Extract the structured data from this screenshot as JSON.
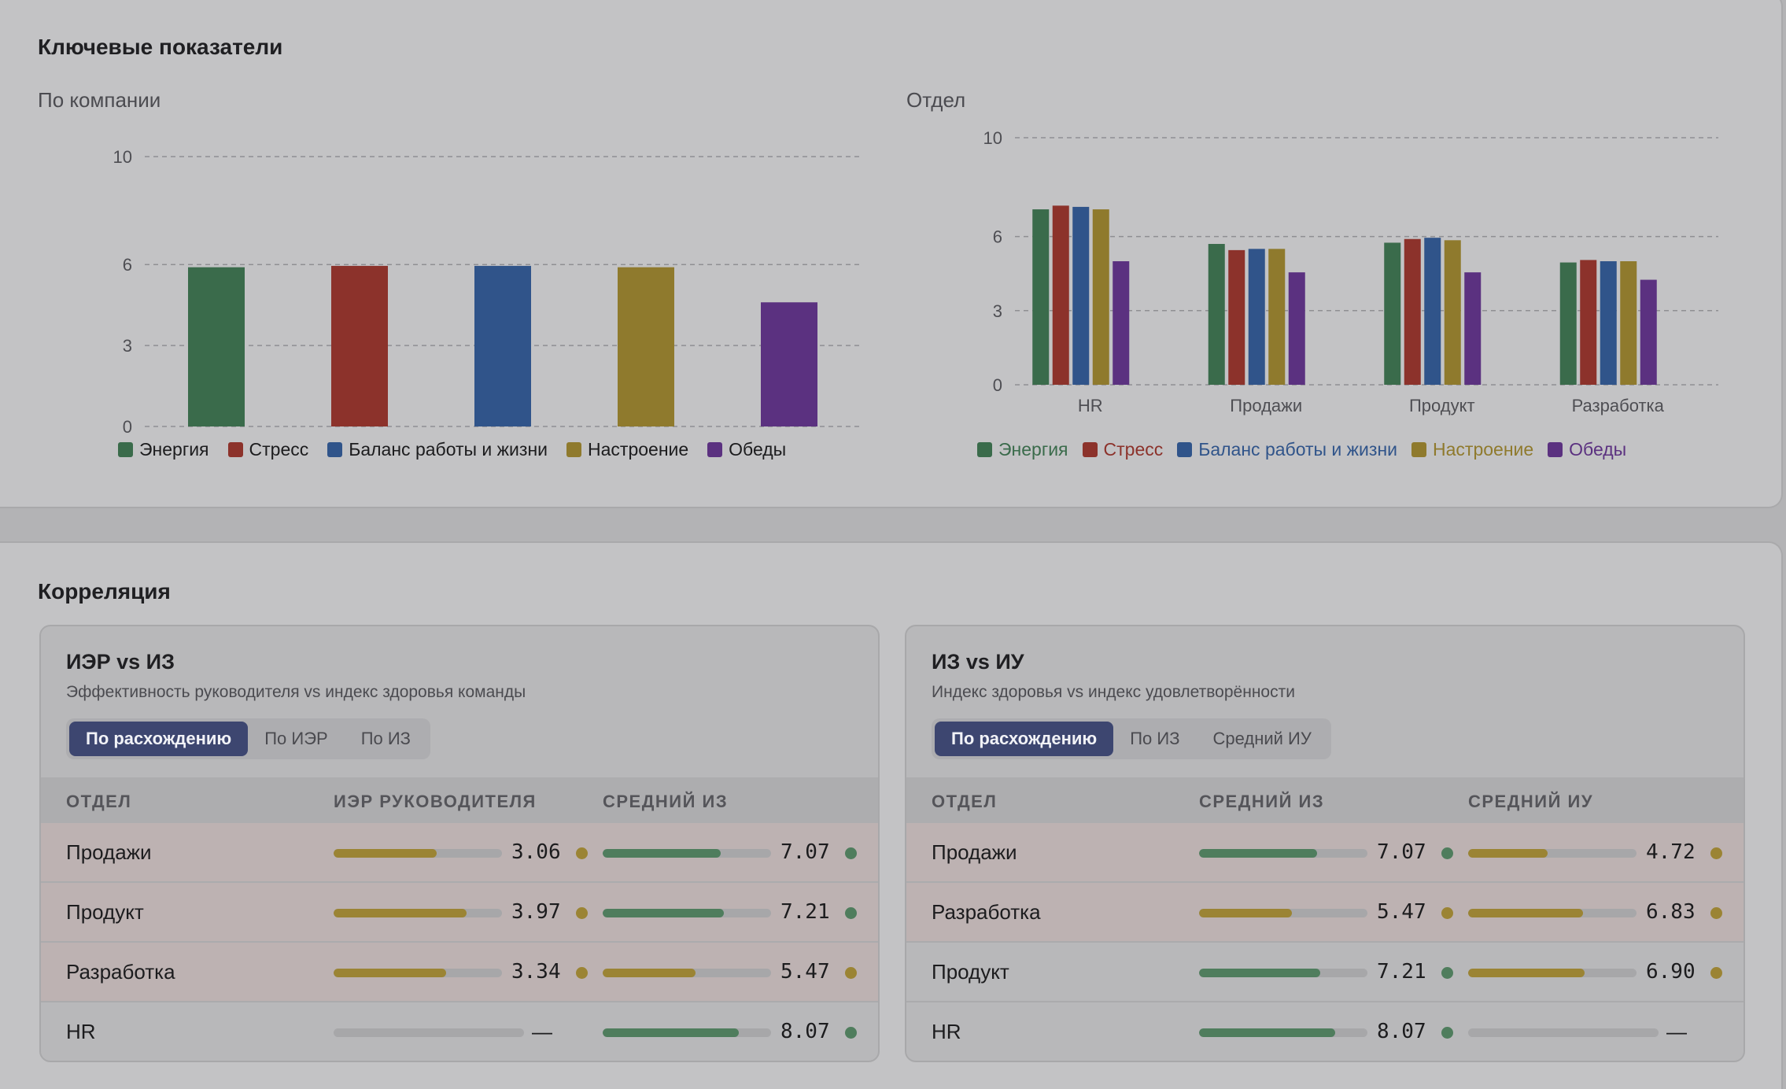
{
  "colors": {
    "energy": "#3a6b4b",
    "stress": "#8c322b",
    "balance": "#30548a",
    "mood": "#8f7a2d",
    "lunch": "#5b3180",
    "good": "#4f7d5d",
    "warn": "#9b8434"
  },
  "kpi": {
    "title": "Ключевые показатели",
    "company_title": "По компании",
    "dept_title": "Отдел"
  },
  "chart_data": [
    {
      "type": "bar",
      "categories": [
        "Энергия",
        "Стресс",
        "Баланс работы и жизни",
        "Настроение",
        "Обеды"
      ],
      "values": [
        5.9,
        5.95,
        5.95,
        5.9,
        4.6
      ],
      "yticks": [
        0,
        3,
        6,
        10
      ],
      "ylim": [
        0,
        10
      ],
      "grid": true,
      "legend": [
        "Энергия",
        "Стресс",
        "Баланс работы и жизни",
        "Настроение",
        "Обеды"
      ],
      "legend_position": "bottom"
    },
    {
      "type": "bar",
      "categories": [
        "HR",
        "Продажи",
        "Продукт",
        "Разработка"
      ],
      "series": [
        {
          "name": "Энергия",
          "values": [
            7.1,
            5.7,
            5.75,
            4.95
          ]
        },
        {
          "name": "Стресс",
          "values": [
            7.25,
            5.45,
            5.9,
            5.05
          ]
        },
        {
          "name": "Баланс работы и жизни",
          "values": [
            7.2,
            5.5,
            5.95,
            5.0
          ]
        },
        {
          "name": "Настроение",
          "values": [
            7.1,
            5.5,
            5.85,
            5.0
          ]
        },
        {
          "name": "Обеды",
          "values": [
            5.0,
            4.55,
            4.55,
            4.25
          ]
        }
      ],
      "yticks": [
        0,
        3,
        6,
        10
      ],
      "ylim": [
        0,
        10
      ],
      "grid": true,
      "legend_position": "bottom"
    }
  ],
  "correlation": {
    "title": "Корреляция",
    "panels": [
      {
        "title": "ИЭР vs ИЗ",
        "subtitle": "Эффективность руководителя vs индекс здоровья команды",
        "tabs": [
          "По расхождению",
          "По ИЭР",
          "По ИЗ"
        ],
        "active_tab": 0,
        "columns": [
          "ОТДЕЛ",
          "ИЭР РУКОВОДИТЕЛЯ",
          "СРЕДНИЙ ИЗ"
        ],
        "rows": [
          {
            "dept": "Продажи",
            "highlight": true,
            "a": {
              "value": "3.06",
              "fraction": 0.61,
              "status": "warn"
            },
            "b": {
              "value": "7.07",
              "fraction": 0.7,
              "status": "good"
            }
          },
          {
            "dept": "Продукт",
            "highlight": true,
            "a": {
              "value": "3.97",
              "fraction": 0.79,
              "status": "warn"
            },
            "b": {
              "value": "7.21",
              "fraction": 0.72,
              "status": "good"
            }
          },
          {
            "dept": "Разработка",
            "highlight": true,
            "a": {
              "value": "3.34",
              "fraction": 0.67,
              "status": "warn"
            },
            "b": {
              "value": "5.47",
              "fraction": 0.55,
              "status": "warn"
            }
          },
          {
            "dept": "HR",
            "highlight": false,
            "a": {
              "value": "—",
              "fraction": 0,
              "status": "none"
            },
            "b": {
              "value": "8.07",
              "fraction": 0.81,
              "status": "good"
            }
          }
        ]
      },
      {
        "title": "ИЗ vs ИУ",
        "subtitle": "Индекс здоровья vs индекс удовлетворённости",
        "tabs": [
          "По расхождению",
          "По ИЗ",
          "Средний ИУ"
        ],
        "active_tab": 0,
        "columns": [
          "ОТДЕЛ",
          "СРЕДНИЙ ИЗ",
          "СРЕДНИЙ ИУ"
        ],
        "rows": [
          {
            "dept": "Продажи",
            "highlight": true,
            "a": {
              "value": "7.07",
              "fraction": 0.7,
              "status": "good"
            },
            "b": {
              "value": "4.72",
              "fraction": 0.47,
              "status": "warn"
            }
          },
          {
            "dept": "Разработка",
            "highlight": true,
            "a": {
              "value": "5.47",
              "fraction": 0.55,
              "status": "warn"
            },
            "b": {
              "value": "6.83",
              "fraction": 0.68,
              "status": "warn"
            }
          },
          {
            "dept": "Продукт",
            "highlight": false,
            "a": {
              "value": "7.21",
              "fraction": 0.72,
              "status": "good"
            },
            "b": {
              "value": "6.90",
              "fraction": 0.69,
              "status": "warn"
            }
          },
          {
            "dept": "HR",
            "highlight": false,
            "a": {
              "value": "8.07",
              "fraction": 0.81,
              "status": "good"
            },
            "b": {
              "value": "—",
              "fraction": 0,
              "status": "none"
            }
          }
        ]
      }
    ]
  }
}
